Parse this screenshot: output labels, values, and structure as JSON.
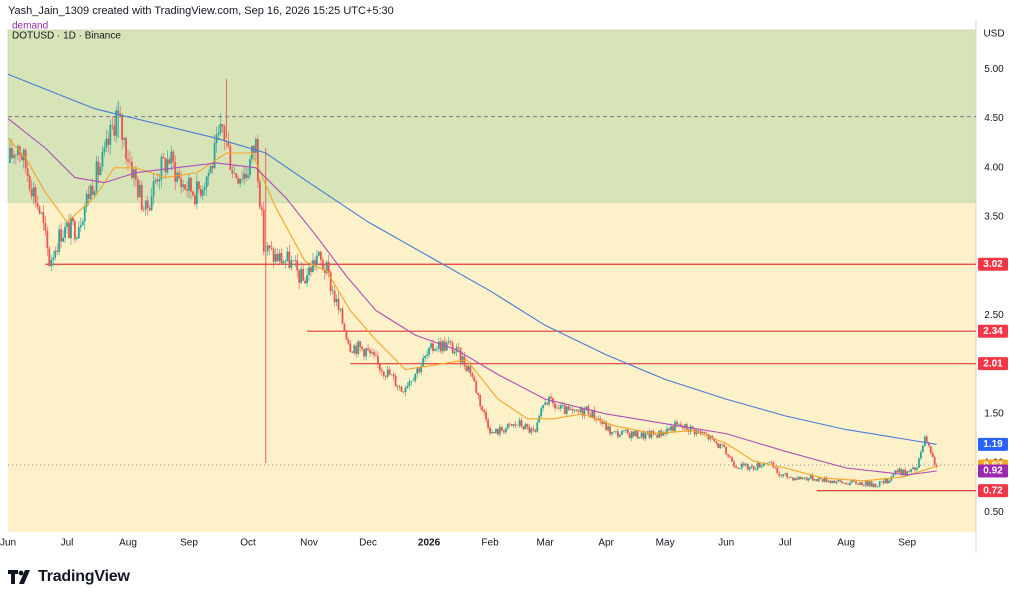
{
  "header": {
    "credit": "Yash_Jain_1309 created with TradingView.com, Sep 16, 2026 15:25 UTC+5:30"
  },
  "symbol_info": "DOTUSD · 1D · Binance",
  "zone_label": "demand",
  "currency": "USD",
  "brand": {
    "name": "TradingView",
    "logo_icon": "tradingview-logo-icon"
  },
  "colors": {
    "plot_bg": "#fdf1c9",
    "demand_zone": "#d6e4b8",
    "candle_up": "#26a69a",
    "candle_down": "#ef5350",
    "hline": "#e53935",
    "ma_orange": "#f5a623",
    "ma_purple": "#b04fb8",
    "ma_blue": "#4a7bd9",
    "price_tag_blue": "#2962ff",
    "price_tag_orange": "#f5a623",
    "price_tag_purple": "#9c27b0",
    "price_tag_red": "#f23645",
    "dotted_line": "#787b86",
    "axis_text": "#131722"
  },
  "chart_data": {
    "type": "candlestick",
    "title": "",
    "ylabel": "",
    "xlabel": "",
    "ylim": [
      0.3,
      5.4
    ],
    "xlim": [
      "2025-06-01",
      "2026-10-06"
    ],
    "grid": false,
    "y_ticks": [
      {
        "value": 5.0,
        "label": "5.00"
      },
      {
        "value": 4.5,
        "label": "4.50"
      },
      {
        "value": 4.0,
        "label": "4.00"
      },
      {
        "value": 3.5,
        "label": "3.50"
      },
      {
        "value": 2.5,
        "label": "2.50"
      },
      {
        "value": 1.5,
        "label": "1.50"
      },
      {
        "value": 1.0,
        "label": "1.00"
      },
      {
        "value": 0.5,
        "label": "0.50"
      }
    ],
    "x_ticks": [
      {
        "date": "2025-06-01",
        "label": "Jun"
      },
      {
        "date": "2025-07-01",
        "label": "Jul"
      },
      {
        "date": "2025-08-01",
        "label": "Aug"
      },
      {
        "date": "2025-09-01",
        "label": "Sep"
      },
      {
        "date": "2025-10-01",
        "label": "Oct"
      },
      {
        "date": "2025-11-01",
        "label": "Nov"
      },
      {
        "date": "2025-12-01",
        "label": "Dec"
      },
      {
        "date": "2026-01-01",
        "label": "2026",
        "bold": true
      },
      {
        "date": "2026-02-01",
        "label": "Feb"
      },
      {
        "date": "2026-03-01",
        "label": "Mar"
      },
      {
        "date": "2026-04-01",
        "label": "Apr"
      },
      {
        "date": "2026-05-01",
        "label": "May"
      },
      {
        "date": "2026-06-01",
        "label": "Jun"
      },
      {
        "date": "2026-07-01",
        "label": "Jul"
      },
      {
        "date": "2026-08-01",
        "label": "Aug"
      },
      {
        "date": "2026-09-01",
        "label": "Sep"
      }
    ],
    "demand_zone": {
      "y_low": 3.65,
      "y_high": 5.4
    },
    "dotted_level": 4.52,
    "current_price_dotted": 0.98,
    "horizontal_levels": [
      {
        "value": 3.02,
        "label": "3.02",
        "from": "2025-06-20"
      },
      {
        "value": 2.34,
        "label": "2.34",
        "from": "2025-10-31"
      },
      {
        "value": 2.01,
        "label": "2.01",
        "from": "2025-11-22"
      },
      {
        "value": 0.72,
        "label": "0.72",
        "from": "2026-07-17"
      }
    ],
    "price_tags": [
      {
        "value": 1.19,
        "label": "1.19",
        "color": "#2962ff"
      },
      {
        "value": 0.97,
        "label": "0.97",
        "color": "#f5a623"
      },
      {
        "value": 0.92,
        "label": "0.92",
        "color": "#9c27b0"
      }
    ],
    "price_path": [
      [
        "2025-06-01",
        4.05
      ],
      [
        "2025-06-06",
        4.25
      ],
      [
        "2025-06-12",
        3.9
      ],
      [
        "2025-06-18",
        3.5
      ],
      [
        "2025-06-22",
        3.05
      ],
      [
        "2025-06-28",
        3.35
      ],
      [
        "2025-07-06",
        3.4
      ],
      [
        "2025-07-14",
        3.85
      ],
      [
        "2025-07-20",
        4.1
      ],
      [
        "2025-07-26",
        4.55
      ],
      [
        "2025-07-31",
        4.2
      ],
      [
        "2025-08-06",
        3.8
      ],
      [
        "2025-08-10",
        3.55
      ],
      [
        "2025-08-16",
        3.95
      ],
      [
        "2025-08-22",
        4.1
      ],
      [
        "2025-08-28",
        3.85
      ],
      [
        "2025-09-05",
        3.75
      ],
      [
        "2025-09-12",
        4.0
      ],
      [
        "2025-09-18",
        4.4
      ],
      [
        "2025-09-24",
        3.95
      ],
      [
        "2025-09-30",
        3.95
      ],
      [
        "2025-10-05",
        4.25
      ],
      [
        "2025-10-09",
        3.2
      ],
      [
        "2025-10-14",
        3.1
      ],
      [
        "2025-10-22",
        3.05
      ],
      [
        "2025-10-29",
        2.85
      ],
      [
        "2025-11-05",
        3.1
      ],
      [
        "2025-11-10",
        2.95
      ],
      [
        "2025-11-16",
        2.55
      ],
      [
        "2025-11-22",
        2.2
      ],
      [
        "2025-11-30",
        2.15
      ],
      [
        "2025-12-06",
        2.0
      ],
      [
        "2025-12-12",
        1.9
      ],
      [
        "2025-12-18",
        1.75
      ],
      [
        "2025-12-26",
        1.95
      ],
      [
        "2026-01-04",
        2.2
      ],
      [
        "2026-01-11",
        2.2
      ],
      [
        "2026-01-16",
        2.1
      ],
      [
        "2026-01-22",
        1.95
      ],
      [
        "2026-01-28",
        1.55
      ],
      [
        "2026-02-02",
        1.3
      ],
      [
        "2026-02-08",
        1.35
      ],
      [
        "2026-02-16",
        1.4
      ],
      [
        "2026-02-24",
        1.3
      ],
      [
        "2026-03-01",
        1.65
      ],
      [
        "2026-03-08",
        1.55
      ],
      [
        "2026-03-16",
        1.5
      ],
      [
        "2026-03-22",
        1.55
      ],
      [
        "2026-03-28",
        1.45
      ],
      [
        "2026-04-04",
        1.3
      ],
      [
        "2026-04-12",
        1.3
      ],
      [
        "2026-04-20",
        1.28
      ],
      [
        "2026-04-28",
        1.3
      ],
      [
        "2026-05-06",
        1.38
      ],
      [
        "2026-05-14",
        1.35
      ],
      [
        "2026-05-22",
        1.28
      ],
      [
        "2026-05-30",
        1.15
      ],
      [
        "2026-06-06",
        0.98
      ],
      [
        "2026-06-14",
        0.95
      ],
      [
        "2026-06-22",
        1.02
      ],
      [
        "2026-06-28",
        0.88
      ],
      [
        "2026-07-06",
        0.85
      ],
      [
        "2026-07-14",
        0.85
      ],
      [
        "2026-07-22",
        0.83
      ],
      [
        "2026-07-30",
        0.8
      ],
      [
        "2026-08-08",
        0.8
      ],
      [
        "2026-08-16",
        0.78
      ],
      [
        "2026-08-22",
        0.82
      ],
      [
        "2026-08-26",
        0.92
      ],
      [
        "2026-09-01",
        0.9
      ],
      [
        "2026-09-06",
        0.95
      ],
      [
        "2026-09-10",
        1.25
      ],
      [
        "2026-09-13",
        1.08
      ],
      [
        "2026-09-16",
        0.97
      ]
    ],
    "moving_averages": [
      {
        "color": "#f5a623",
        "points": [
          [
            "2025-06-01",
            4.3
          ],
          [
            "2025-06-10",
            4.1
          ],
          [
            "2025-06-20",
            3.75
          ],
          [
            "2025-07-01",
            3.45
          ],
          [
            "2025-07-15",
            3.7
          ],
          [
            "2025-07-25",
            4.0
          ],
          [
            "2025-08-05",
            4.0
          ],
          [
            "2025-08-20",
            3.9
          ],
          [
            "2025-09-05",
            3.95
          ],
          [
            "2025-09-20",
            4.15
          ],
          [
            "2025-10-03",
            4.15
          ],
          [
            "2025-10-15",
            3.6
          ],
          [
            "2025-10-30",
            3.05
          ],
          [
            "2025-11-10",
            2.95
          ],
          [
            "2025-11-22",
            2.55
          ],
          [
            "2025-12-05",
            2.25
          ],
          [
            "2025-12-20",
            1.95
          ],
          [
            "2026-01-05",
            2.0
          ],
          [
            "2026-01-20",
            2.05
          ],
          [
            "2026-02-05",
            1.65
          ],
          [
            "2026-02-20",
            1.45
          ],
          [
            "2026-03-05",
            1.45
          ],
          [
            "2026-03-20",
            1.5
          ],
          [
            "2026-04-05",
            1.38
          ],
          [
            "2026-04-25",
            1.3
          ],
          [
            "2026-05-15",
            1.33
          ],
          [
            "2026-06-01",
            1.2
          ],
          [
            "2026-06-15",
            1.02
          ],
          [
            "2026-07-01",
            0.95
          ],
          [
            "2026-07-20",
            0.85
          ],
          [
            "2026-08-10",
            0.82
          ],
          [
            "2026-08-30",
            0.86
          ],
          [
            "2026-09-16",
            0.97
          ]
        ]
      },
      {
        "color": "#b04fb8",
        "points": [
          [
            "2025-06-01",
            4.5
          ],
          [
            "2025-06-20",
            4.2
          ],
          [
            "2025-07-05",
            3.9
          ],
          [
            "2025-07-20",
            3.85
          ],
          [
            "2025-08-05",
            3.95
          ],
          [
            "2025-08-25",
            4.0
          ],
          [
            "2025-09-15",
            4.05
          ],
          [
            "2025-10-05",
            4.0
          ],
          [
            "2025-10-20",
            3.7
          ],
          [
            "2025-11-05",
            3.3
          ],
          [
            "2025-11-20",
            2.9
          ],
          [
            "2025-12-05",
            2.55
          ],
          [
            "2025-12-25",
            2.3
          ],
          [
            "2026-01-15",
            2.15
          ],
          [
            "2026-02-05",
            1.9
          ],
          [
            "2026-03-01",
            1.65
          ],
          [
            "2026-04-01",
            1.5
          ],
          [
            "2026-05-01",
            1.4
          ],
          [
            "2026-06-01",
            1.3
          ],
          [
            "2026-07-01",
            1.12
          ],
          [
            "2026-08-01",
            0.95
          ],
          [
            "2026-09-01",
            0.88
          ],
          [
            "2026-09-16",
            0.92
          ]
        ]
      },
      {
        "color": "#4a7bd9",
        "points": [
          [
            "2025-06-01",
            4.95
          ],
          [
            "2025-06-20",
            4.8
          ],
          [
            "2025-07-15",
            4.6
          ],
          [
            "2025-08-15",
            4.45
          ],
          [
            "2025-09-15",
            4.3
          ],
          [
            "2025-10-10",
            4.15
          ],
          [
            "2025-11-01",
            3.85
          ],
          [
            "2025-12-01",
            3.45
          ],
          [
            "2026-01-01",
            3.1
          ],
          [
            "2026-02-01",
            2.75
          ],
          [
            "2026-03-01",
            2.4
          ],
          [
            "2026-04-01",
            2.1
          ],
          [
            "2026-05-01",
            1.85
          ],
          [
            "2026-06-01",
            1.65
          ],
          [
            "2026-07-01",
            1.48
          ],
          [
            "2026-08-01",
            1.34
          ],
          [
            "2026-09-01",
            1.24
          ],
          [
            "2026-09-16",
            1.19
          ]
        ]
      }
    ]
  }
}
